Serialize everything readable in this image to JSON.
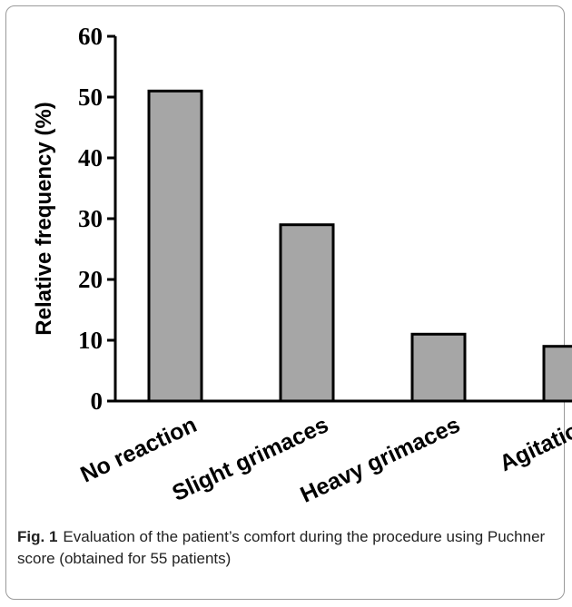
{
  "chart_data": {
    "type": "bar",
    "categories": [
      "No reaction",
      "Slight grimaces",
      "Heavy grimaces",
      "Agitation"
    ],
    "values": [
      51,
      29,
      11,
      9
    ],
    "ylabel": "Relative frequency (%)",
    "xlabel": "",
    "ylim": [
      0,
      60
    ],
    "yticks": [
      "0",
      "10",
      "20",
      "30",
      "40",
      "50",
      "60"
    ],
    "grid": false,
    "bar_color": "#a6a6a6",
    "edge_color": "#000000"
  },
  "caption": {
    "label": "Fig. 1",
    "text": "Evaluation of the patient’s comfort during the procedure using Puchner score (obtained for 55 patients)"
  }
}
